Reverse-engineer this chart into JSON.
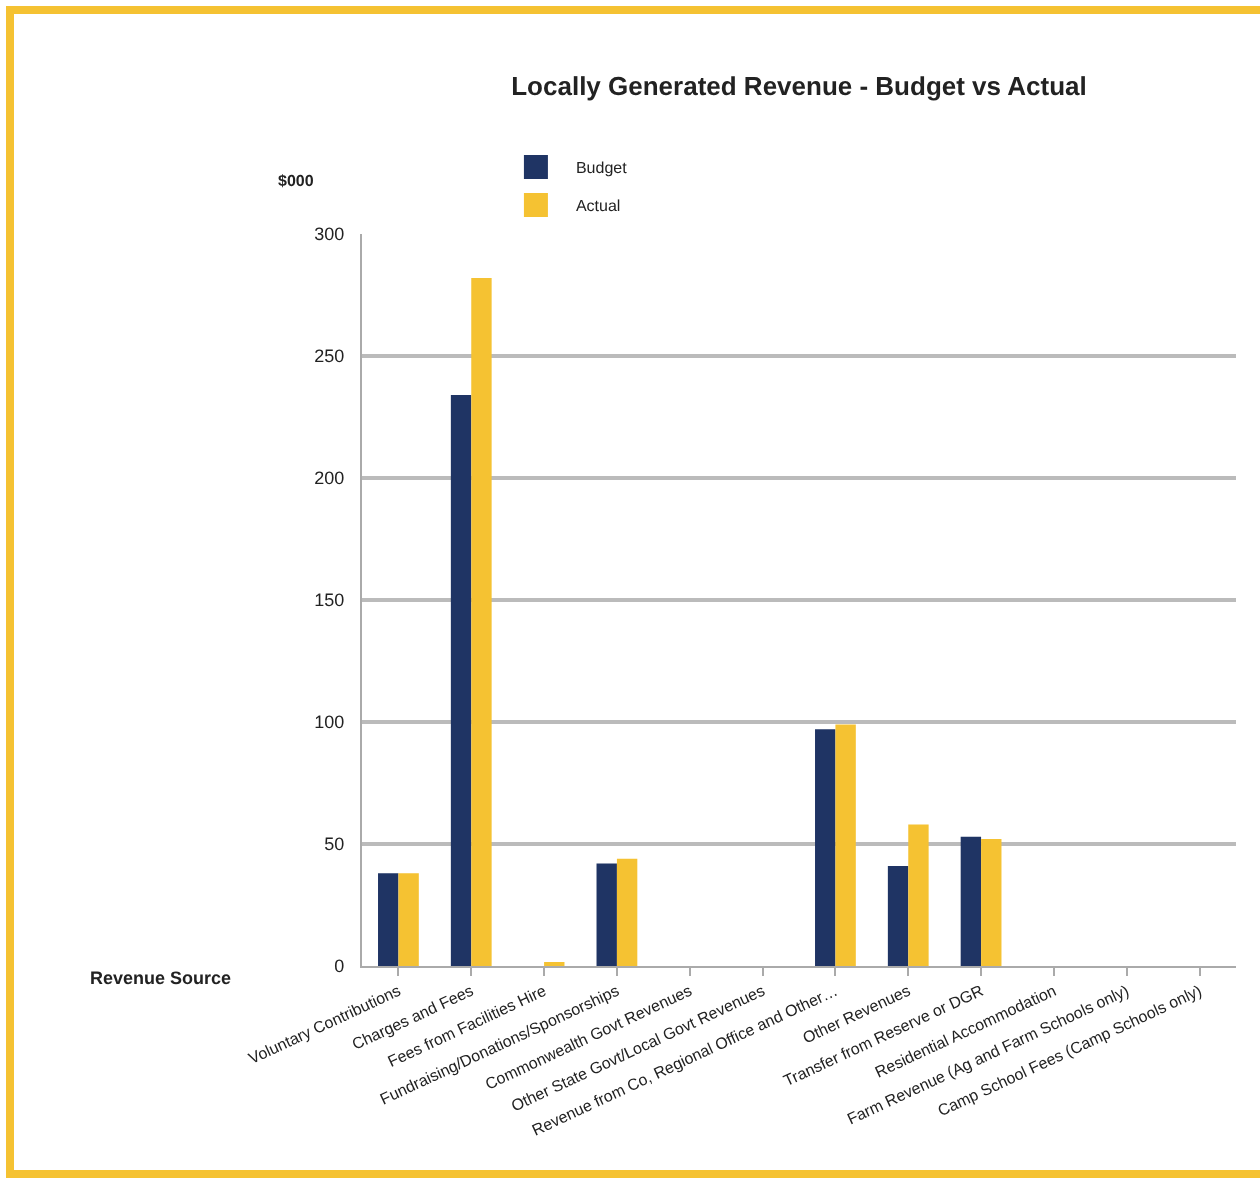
{
  "chart_data": {
    "type": "bar",
    "title": "Locally Generated Revenue - Budget vs Actual",
    "ylabel": "$000",
    "xlabel": "Revenue Source",
    "categories": [
      "Voluntary Contributions",
      "Charges and Fees",
      "Fees from Facilities Hire",
      "Fundraising/Donations/Sponsorships",
      "Commonwealth Govt Revenues",
      "Other State Govt/Local Govt Revenues",
      "Revenue from Co, Regional Office and Other…",
      "Other Revenues",
      "Transfer from Reserve or DGR",
      "Residential Accommodation",
      "Farm Revenue (Ag and Farm Schools only)",
      "Camp School Fees (Camp Schools only)"
    ],
    "series": [
      {
        "name": "Budget",
        "color": "#1f3464",
        "values": [
          38,
          234,
          0,
          42,
          0,
          0,
          97,
          41,
          53,
          0,
          0,
          0
        ]
      },
      {
        "name": "Actual",
        "color": "#f5c232",
        "values": [
          38,
          282,
          1,
          44,
          0,
          0,
          99,
          58,
          52,
          0,
          0,
          0
        ]
      }
    ],
    "ylim": [
      0,
      300
    ],
    "yticks": [
      0,
      50,
      100,
      150,
      200,
      250,
      300
    ],
    "grid": "y",
    "legend": "top"
  }
}
